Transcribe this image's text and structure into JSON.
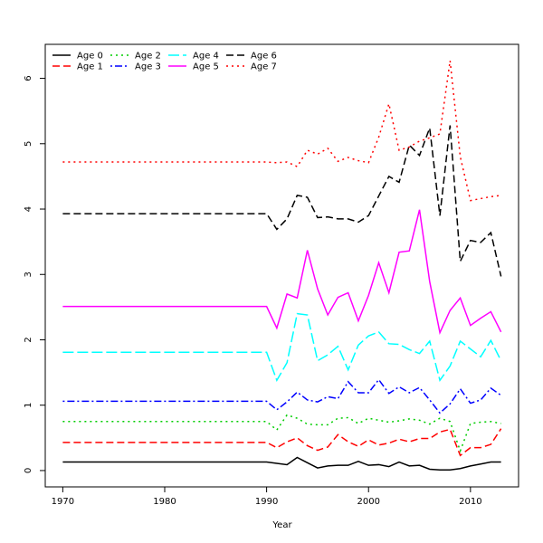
{
  "chart_data": {
    "type": "line",
    "xlabel": "Year",
    "x": [
      1970,
      1971,
      1972,
      1973,
      1974,
      1975,
      1976,
      1977,
      1978,
      1979,
      1980,
      1981,
      1982,
      1983,
      1984,
      1985,
      1986,
      1987,
      1988,
      1989,
      1990,
      1991,
      1992,
      1993,
      1994,
      1995,
      1996,
      1997,
      1998,
      1999,
      2000,
      2001,
      2002,
      2003,
      2004,
      2005,
      2006,
      2007,
      2008,
      2009,
      2010,
      2011,
      2012,
      2013
    ],
    "series": [
      {
        "name": "Age 0",
        "color": "#000000",
        "dash": "solid",
        "values": [
          0.13,
          0.13,
          0.13,
          0.13,
          0.13,
          0.13,
          0.13,
          0.13,
          0.13,
          0.13,
          0.13,
          0.13,
          0.13,
          0.13,
          0.13,
          0.13,
          0.13,
          0.13,
          0.13,
          0.13,
          0.13,
          0.11,
          0.09,
          0.2,
          0.12,
          0.04,
          0.07,
          0.08,
          0.08,
          0.14,
          0.08,
          0.09,
          0.06,
          0.13,
          0.07,
          0.08,
          0.02,
          0.01,
          0.01,
          0.03,
          0.07,
          0.1,
          0.13,
          0.13
        ]
      },
      {
        "name": "Age 1",
        "color": "#ff0000",
        "dash": "dashed",
        "values": [
          0.43,
          0.43,
          0.43,
          0.43,
          0.43,
          0.43,
          0.43,
          0.43,
          0.43,
          0.43,
          0.43,
          0.43,
          0.43,
          0.43,
          0.43,
          0.43,
          0.43,
          0.43,
          0.43,
          0.43,
          0.43,
          0.35,
          0.44,
          0.5,
          0.38,
          0.31,
          0.36,
          0.55,
          0.44,
          0.37,
          0.47,
          0.39,
          0.42,
          0.48,
          0.44,
          0.49,
          0.49,
          0.59,
          0.63,
          0.23,
          0.35,
          0.35,
          0.4,
          0.64
        ]
      },
      {
        "name": "Age 2",
        "color": "#00cd00",
        "dash": "dotted",
        "values": [
          0.75,
          0.75,
          0.75,
          0.75,
          0.75,
          0.75,
          0.75,
          0.75,
          0.75,
          0.75,
          0.75,
          0.75,
          0.75,
          0.75,
          0.75,
          0.75,
          0.75,
          0.75,
          0.75,
          0.75,
          0.75,
          0.62,
          0.85,
          0.8,
          0.71,
          0.7,
          0.7,
          0.8,
          0.81,
          0.72,
          0.8,
          0.77,
          0.74,
          0.76,
          0.79,
          0.77,
          0.71,
          0.8,
          0.75,
          0.3,
          0.72,
          0.74,
          0.75,
          0.72
        ]
      },
      {
        "name": "Age 3",
        "color": "#0000ff",
        "dash": "dotdash",
        "values": [
          1.06,
          1.06,
          1.06,
          1.06,
          1.06,
          1.06,
          1.06,
          1.06,
          1.06,
          1.06,
          1.06,
          1.06,
          1.06,
          1.06,
          1.06,
          1.06,
          1.06,
          1.06,
          1.06,
          1.06,
          1.06,
          0.93,
          1.05,
          1.2,
          1.08,
          1.05,
          1.13,
          1.1,
          1.36,
          1.19,
          1.19,
          1.39,
          1.18,
          1.28,
          1.19,
          1.27,
          1.08,
          0.88,
          1.02,
          1.25,
          1.03,
          1.08,
          1.26,
          1.15
        ]
      },
      {
        "name": "Age 4",
        "color": "#00ffff",
        "dash": "longdash",
        "values": [
          1.81,
          1.81,
          1.81,
          1.81,
          1.81,
          1.81,
          1.81,
          1.81,
          1.81,
          1.81,
          1.81,
          1.81,
          1.81,
          1.81,
          1.81,
          1.81,
          1.81,
          1.81,
          1.81,
          1.81,
          1.81,
          1.38,
          1.65,
          2.4,
          2.38,
          1.68,
          1.77,
          1.9,
          1.54,
          1.92,
          2.06,
          2.12,
          1.94,
          1.93,
          1.85,
          1.79,
          1.98,
          1.38,
          1.6,
          1.98,
          1.86,
          1.74,
          1.99,
          1.68
        ]
      },
      {
        "name": "Age 5",
        "color": "#ff00ff",
        "dash": "solid",
        "values": [
          2.51,
          2.51,
          2.51,
          2.51,
          2.51,
          2.51,
          2.51,
          2.51,
          2.51,
          2.51,
          2.51,
          2.51,
          2.51,
          2.51,
          2.51,
          2.51,
          2.51,
          2.51,
          2.51,
          2.51,
          2.51,
          2.18,
          2.7,
          2.64,
          3.37,
          2.78,
          2.38,
          2.65,
          2.72,
          2.29,
          2.68,
          3.18,
          2.72,
          3.34,
          3.36,
          3.99,
          2.89,
          2.11,
          2.45,
          2.64,
          2.22,
          2.33,
          2.43,
          2.12
        ]
      },
      {
        "name": "Age 6",
        "color": "#000000",
        "dash": "dashed",
        "values": [
          3.93,
          3.93,
          3.93,
          3.93,
          3.93,
          3.93,
          3.93,
          3.93,
          3.93,
          3.93,
          3.93,
          3.93,
          3.93,
          3.93,
          3.93,
          3.93,
          3.93,
          3.93,
          3.93,
          3.93,
          3.93,
          3.69,
          3.85,
          4.21,
          4.18,
          3.87,
          3.88,
          3.85,
          3.85,
          3.8,
          3.9,
          4.2,
          4.5,
          4.41,
          4.98,
          4.82,
          5.24,
          3.9,
          5.28,
          3.2,
          3.52,
          3.49,
          3.64,
          2.97
        ]
      },
      {
        "name": "Age 7",
        "color": "#ff0000",
        "dash": "dotted",
        "values": [
          4.72,
          4.72,
          4.72,
          4.72,
          4.72,
          4.72,
          4.72,
          4.72,
          4.72,
          4.72,
          4.72,
          4.72,
          4.72,
          4.72,
          4.72,
          4.72,
          4.72,
          4.72,
          4.72,
          4.72,
          4.72,
          4.71,
          4.72,
          4.65,
          4.9,
          4.84,
          4.93,
          4.73,
          4.79,
          4.74,
          4.71,
          5.1,
          5.61,
          4.9,
          4.95,
          5.04,
          5.09,
          5.15,
          6.27,
          4.8,
          4.13,
          4.16,
          4.19,
          4.21
        ]
      }
    ],
    "xlim": [
      1968.28,
      2014.72
    ],
    "ylim": [
      -0.25,
      6.52
    ],
    "xticks": [
      1970,
      1980,
      1990,
      2000,
      2010
    ],
    "yticks": [
      0,
      1,
      2,
      3,
      4,
      5,
      6
    ],
    "legend": "top-left"
  }
}
